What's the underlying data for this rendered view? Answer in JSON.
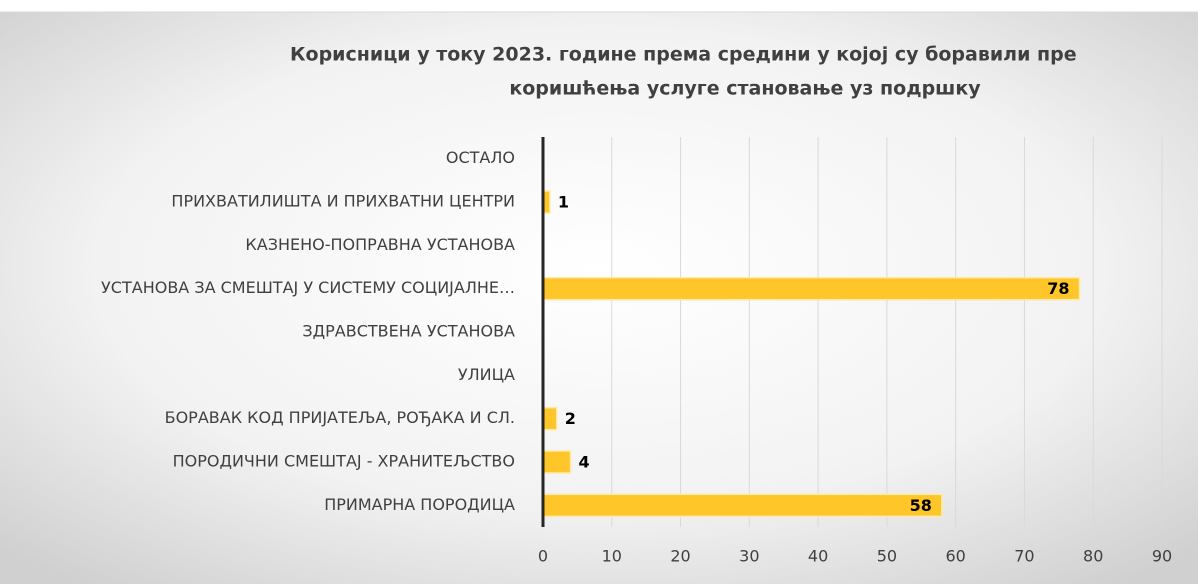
{
  "chart_data": {
    "type": "barh",
    "title": [
      "Корисници у току 2023.  године према средини у којој су боравили пре",
      "коришћења услуге становање уз подршку"
    ],
    "categories": [
      "ОСТАЛО",
      "ПРИХВАТИЛИШТА И ПРИХВАТНИ ЦЕНТРИ",
      "КАЗНЕНО-ПОПРАВНА УСТАНОВА",
      "УСТАНОВА ЗА СМЕШТАЈ У СИСТЕМУ СОЦИЈАЛНЕ…",
      "ЗДРАВСТВЕНА УСТАНОВА",
      "УЛИЦА",
      "БОРАВАК КОД ПРИЈАТЕЉА, РОЂАКА И СЛ.",
      "ПОРОДИЧНИ СМЕШТАЈ - ХРАНИТЕЉСТВО",
      "ПРИМАРНА ПОРОДИЦА"
    ],
    "values": [
      0,
      1,
      0,
      78,
      0,
      0,
      2,
      4,
      58
    ],
    "color": "#ffc629",
    "xlim": [
      0,
      90
    ],
    "xticks": [
      0,
      10,
      20,
      30,
      40,
      50,
      60,
      70,
      80,
      90
    ],
    "grid": true
  }
}
